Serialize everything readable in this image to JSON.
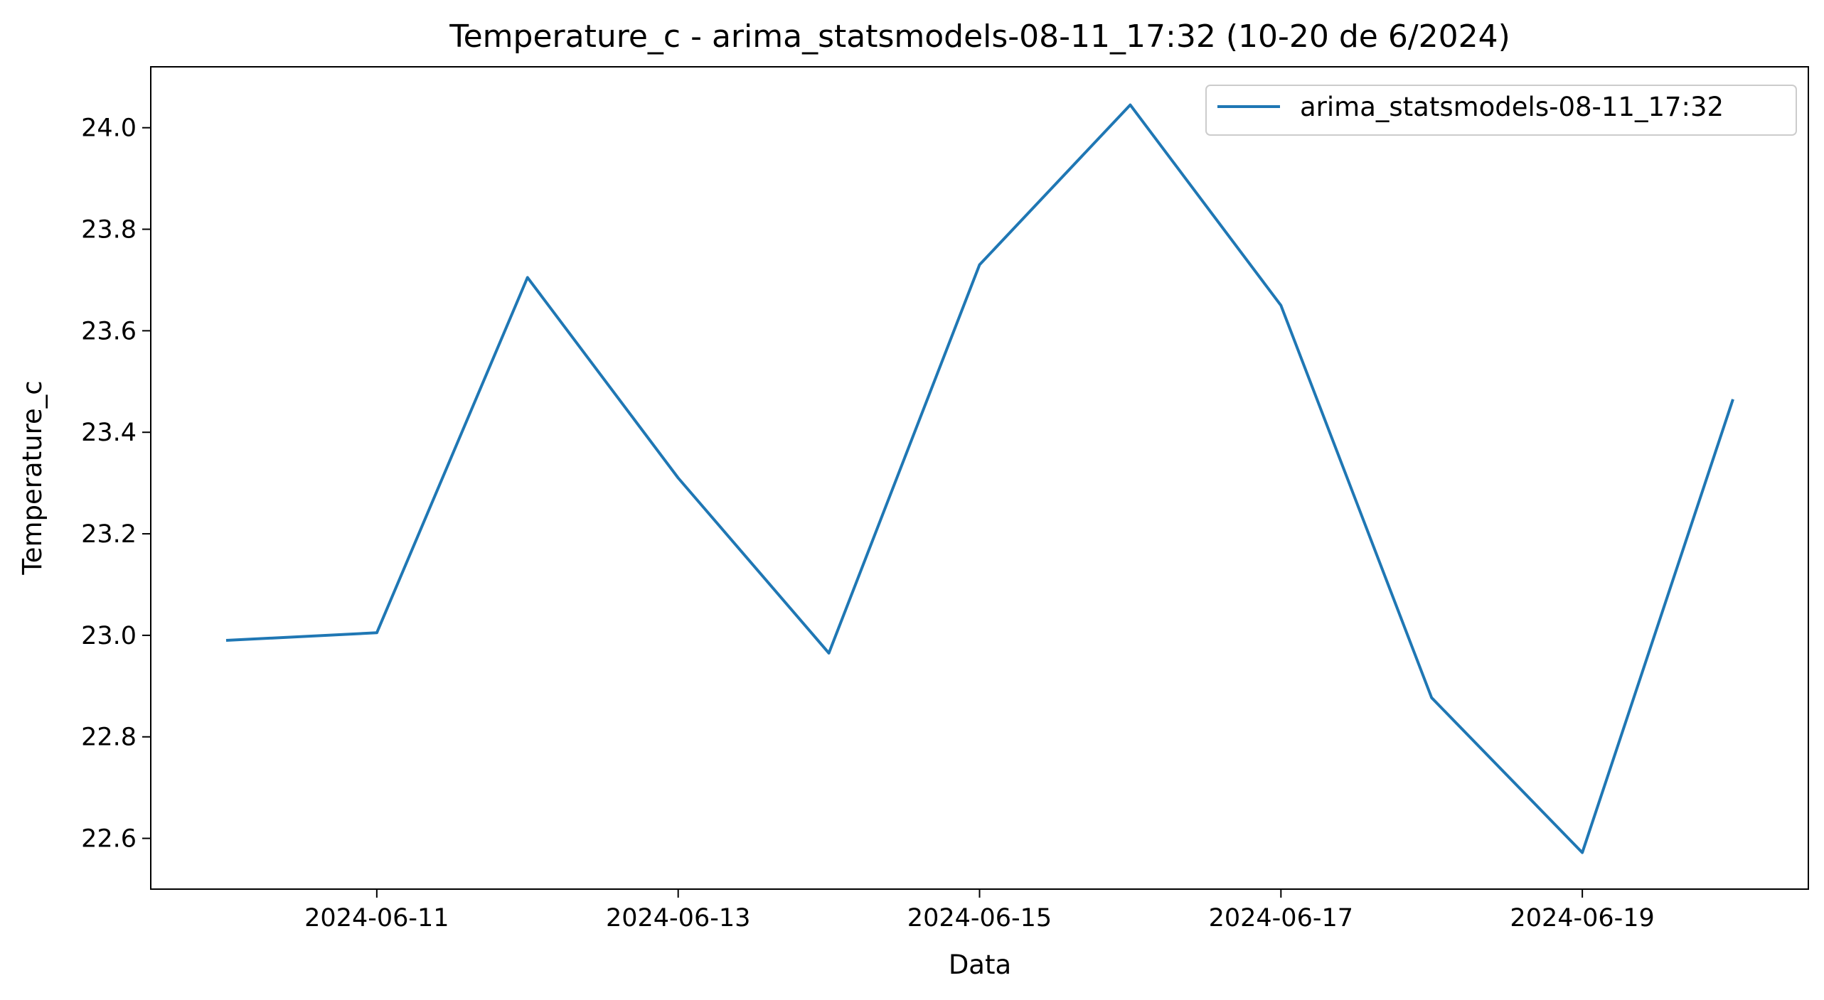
{
  "chart_data": {
    "type": "line",
    "title": "Temperature_c - arima_statsmodels-08-11_17:32 (10-20 de 6/2024)",
    "xlabel": "Data",
    "ylabel": "Temperature_c",
    "x": [
      "2024-06-10",
      "2024-06-11",
      "2024-06-12",
      "2024-06-13",
      "2024-06-14",
      "2024-06-15",
      "2024-06-16",
      "2024-06-17",
      "2024-06-18",
      "2024-06-19",
      "2024-06-20"
    ],
    "xticks": [
      "2024-06-11",
      "2024-06-13",
      "2024-06-15",
      "2024-06-17",
      "2024-06-19"
    ],
    "xlim": [
      "2024-06-09T12:00",
      "2024-06-20T12:00"
    ],
    "ylim": [
      22.5,
      24.12
    ],
    "yticks": [
      "22.6",
      "22.8",
      "23.0",
      "23.2",
      "23.4",
      "23.6",
      "23.8",
      "24.0"
    ],
    "series": [
      {
        "name": "arima_statsmodels-08-11_17:32",
        "color": "#1f77b4",
        "values": [
          22.99,
          23.005,
          23.705,
          23.31,
          22.965,
          23.73,
          24.045,
          23.65,
          22.877,
          22.572,
          23.465
        ]
      }
    ],
    "legend": "top-right",
    "grid": false
  }
}
